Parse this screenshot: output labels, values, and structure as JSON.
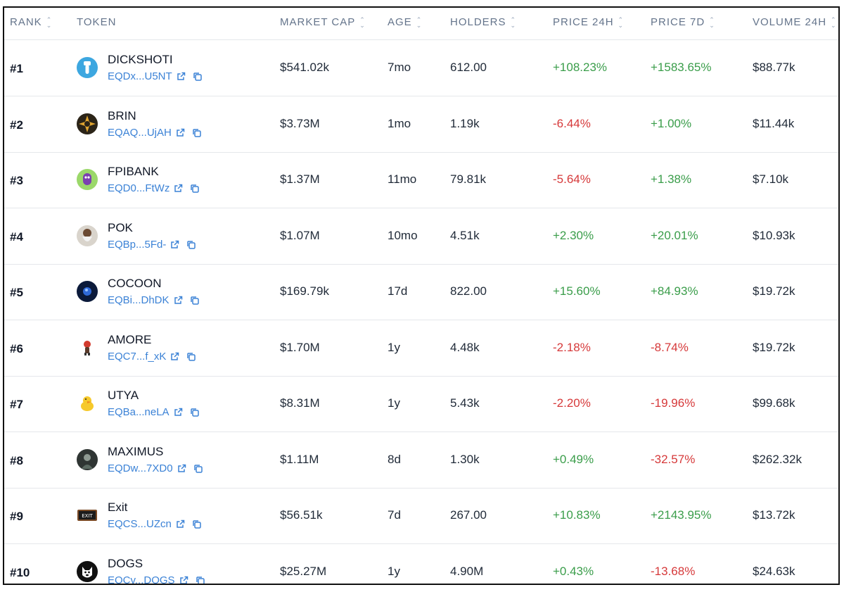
{
  "table": {
    "columns": [
      {
        "label": "RANK",
        "sortable": true
      },
      {
        "label": "TOKEN",
        "sortable": false
      },
      {
        "label": "MARKET CAP",
        "sortable": true
      },
      {
        "label": "AGE",
        "sortable": true
      },
      {
        "label": "HOLDERS",
        "sortable": true
      },
      {
        "label": "PRICE 24H",
        "sortable": true
      },
      {
        "label": "PRICE 7D",
        "sortable": true
      },
      {
        "label": "VOLUME 24H",
        "sortable": true
      }
    ],
    "sort_glyph": "⌃⌄",
    "rows": [
      {
        "rank": "#1",
        "name": "DICKSHOTI",
        "address": "EQDx...U5NT",
        "logo": "blue-figure-logo",
        "market_cap": "$541.02k",
        "age": "7mo",
        "holders": "612.00",
        "price_24h": "+108.23%",
        "price_7d": "+1583.65%",
        "volume_24h": "$88.77k"
      },
      {
        "rank": "#2",
        "name": "BRIN",
        "address": "EQAQ...UjAH",
        "logo": "gold-star-logo",
        "market_cap": "$3.73M",
        "age": "1mo",
        "holders": "1.19k",
        "price_24h": "-6.44%",
        "price_7d": "+1.00%",
        "volume_24h": "$11.44k"
      },
      {
        "rank": "#3",
        "name": "FPIBANK",
        "address": "EQD0...FtWz",
        "logo": "purple-creature-logo",
        "market_cap": "$1.37M",
        "age": "11mo",
        "holders": "79.81k",
        "price_24h": "-5.64%",
        "price_7d": "+1.38%",
        "volume_24h": "$7.10k"
      },
      {
        "rank": "#4",
        "name": "POK",
        "address": "EQBp...5Fd-",
        "logo": "bearded-man-logo",
        "market_cap": "$1.07M",
        "age": "10mo",
        "holders": "4.51k",
        "price_24h": "+2.30%",
        "price_7d": "+20.01%",
        "volume_24h": "$10.93k"
      },
      {
        "rank": "#5",
        "name": "COCOON",
        "address": "EQBi...DhDK",
        "logo": "dark-orb-logo",
        "market_cap": "$169.79k",
        "age": "17d",
        "holders": "822.00",
        "price_24h": "+15.60%",
        "price_7d": "+84.93%",
        "volume_24h": "$19.72k"
      },
      {
        "rank": "#6",
        "name": "AMORE",
        "address": "EQC7...f_xK",
        "logo": "red-figure-logo",
        "market_cap": "$1.70M",
        "age": "1y",
        "holders": "4.48k",
        "price_24h": "-2.18%",
        "price_7d": "-8.74%",
        "volume_24h": "$19.72k"
      },
      {
        "rank": "#7",
        "name": "UTYA",
        "address": "EQBa...neLA",
        "logo": "yellow-duck-logo",
        "market_cap": "$8.31M",
        "age": "1y",
        "holders": "5.43k",
        "price_24h": "-2.20%",
        "price_7d": "-19.96%",
        "volume_24h": "$99.68k"
      },
      {
        "rank": "#8",
        "name": "MAXIMUS",
        "address": "EQDw...7XD0",
        "logo": "warrior-logo",
        "market_cap": "$1.11M",
        "age": "8d",
        "holders": "1.30k",
        "price_24h": "+0.49%",
        "price_7d": "-32.57%",
        "volume_24h": "$262.32k"
      },
      {
        "rank": "#9",
        "name": "Exit",
        "address": "EQCS...UZcn",
        "logo": "exit-sign-logo",
        "market_cap": "$56.51k",
        "age": "7d",
        "holders": "267.00",
        "price_24h": "+10.83%",
        "price_7d": "+2143.95%",
        "volume_24h": "$13.72k"
      },
      {
        "rank": "#10",
        "name": "DOGS",
        "address": "EQCv...DOGS",
        "logo": "dog-face-logo",
        "market_cap": "$25.27M",
        "age": "1y",
        "holders": "4.90M",
        "price_24h": "+0.43%",
        "price_7d": "-13.68%",
        "volume_24h": "$24.63k"
      }
    ]
  },
  "icons": {
    "external_link": "external-link-icon",
    "copy": "copy-icon"
  },
  "colors": {
    "positive": "#3a9d4a",
    "negative": "#d6393a",
    "link": "#3b82d6",
    "header_text": "#64748b",
    "divider": "#e5e7eb"
  }
}
